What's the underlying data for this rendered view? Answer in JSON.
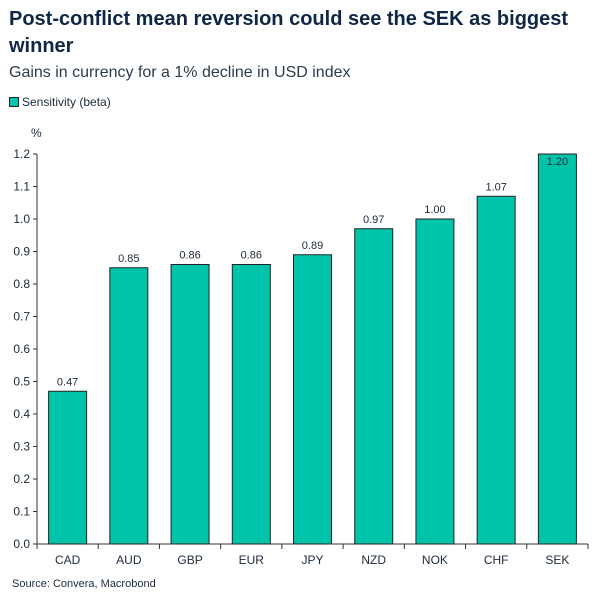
{
  "chart_data": {
    "type": "bar",
    "title": "Post-conflict mean reversion could see the SEK as biggest winner",
    "subtitle": "Gains in currency for a 1% decline in USD index",
    "ylabel": "%",
    "categories": [
      "CAD",
      "AUD",
      "GBP",
      "EUR",
      "JPY",
      "NZD",
      "NOK",
      "CHF",
      "SEK"
    ],
    "series": [
      {
        "name": "Sensitivity (beta)",
        "values": [
          0.47,
          0.85,
          0.86,
          0.86,
          0.89,
          0.97,
          1.0,
          1.07,
          1.2
        ],
        "labels": [
          "0.47",
          "0.85",
          "0.86",
          "0.86",
          "0.89",
          "0.97",
          "1.00",
          "1.07",
          "1.20"
        ],
        "color": "#00c4aa"
      }
    ],
    "ylim": [
      0,
      1.2
    ],
    "yticks": [
      "0.0",
      "0.1",
      "0.2",
      "0.3",
      "0.4",
      "0.5",
      "0.6",
      "0.7",
      "0.8",
      "0.9",
      "1.0",
      "1.1",
      "1.2"
    ],
    "grid": false,
    "legend": "top-left",
    "source": "Source: Convera, Macrobond"
  }
}
